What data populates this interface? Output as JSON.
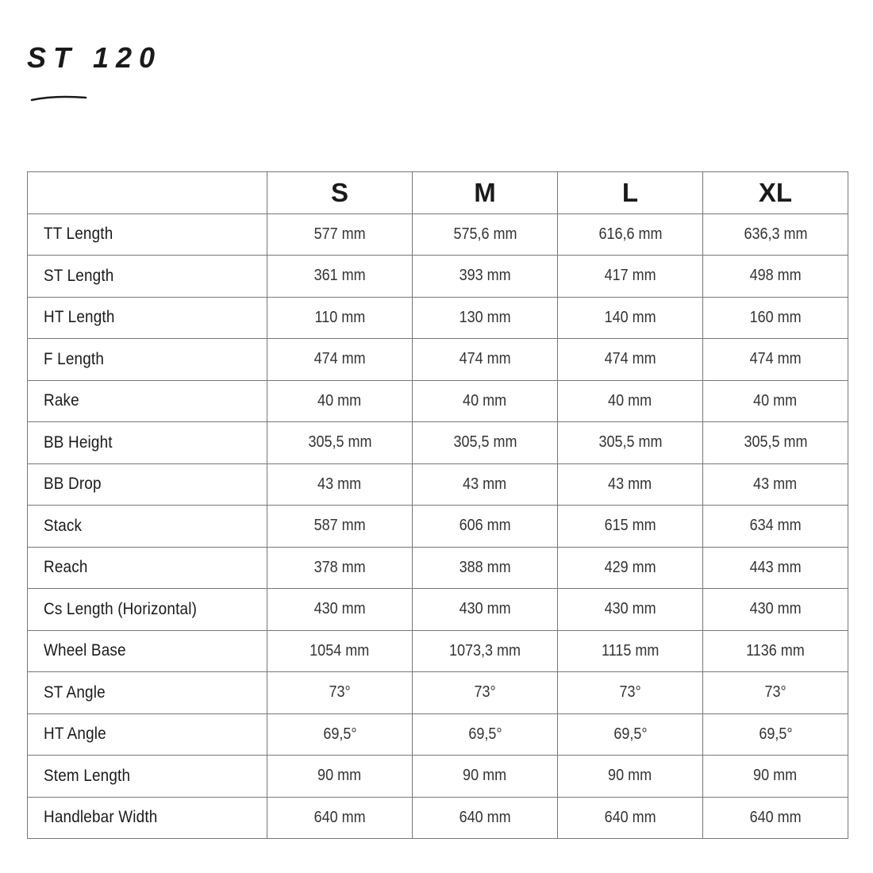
{
  "title": "ST 120",
  "table": {
    "columns": [
      "",
      "S",
      "M",
      "L",
      "XL"
    ],
    "rows": [
      {
        "label": "TT Length",
        "values": [
          "577 mm",
          "575,6 mm",
          "616,6 mm",
          "636,3 mm"
        ]
      },
      {
        "label": "ST Length",
        "values": [
          "361 mm",
          "393 mm",
          "417 mm",
          "498 mm"
        ]
      },
      {
        "label": "HT Length",
        "values": [
          "110 mm",
          "130 mm",
          "140 mm",
          "160 mm"
        ]
      },
      {
        "label": "F Length",
        "values": [
          "474 mm",
          "474 mm",
          "474 mm",
          "474 mm"
        ]
      },
      {
        "label": "Rake",
        "values": [
          "40 mm",
          "40 mm",
          "40 mm",
          "40 mm"
        ]
      },
      {
        "label": "BB Height",
        "values": [
          "305,5 mm",
          "305,5 mm",
          "305,5 mm",
          "305,5 mm"
        ]
      },
      {
        "label": "BB Drop",
        "values": [
          "43 mm",
          "43 mm",
          "43 mm",
          "43 mm"
        ]
      },
      {
        "label": "Stack",
        "values": [
          "587 mm",
          "606 mm",
          "615 mm",
          "634 mm"
        ]
      },
      {
        "label": "Reach",
        "values": [
          "378 mm",
          "388 mm",
          "429 mm",
          "443 mm"
        ]
      },
      {
        "label": "Cs Length (Horizontal)",
        "values": [
          "430 mm",
          "430 mm",
          "430 mm",
          "430 mm"
        ]
      },
      {
        "label": "Wheel Base",
        "values": [
          "1054 mm",
          "1073,3 mm",
          "1115 mm",
          "1136 mm"
        ]
      },
      {
        "label": "ST Angle",
        "values": [
          "73°",
          "73°",
          "73°",
          "73°"
        ]
      },
      {
        "label": "HT Angle",
        "values": [
          "69,5°",
          "69,5°",
          "69,5°",
          "69,5°"
        ]
      },
      {
        "label": "Stem Length",
        "values": [
          "90 mm",
          "90 mm",
          "90 mm",
          "90 mm"
        ]
      },
      {
        "label": "Handlebar Width",
        "values": [
          "640 mm",
          "640 mm",
          "640 mm",
          "640 mm"
        ]
      }
    ]
  }
}
